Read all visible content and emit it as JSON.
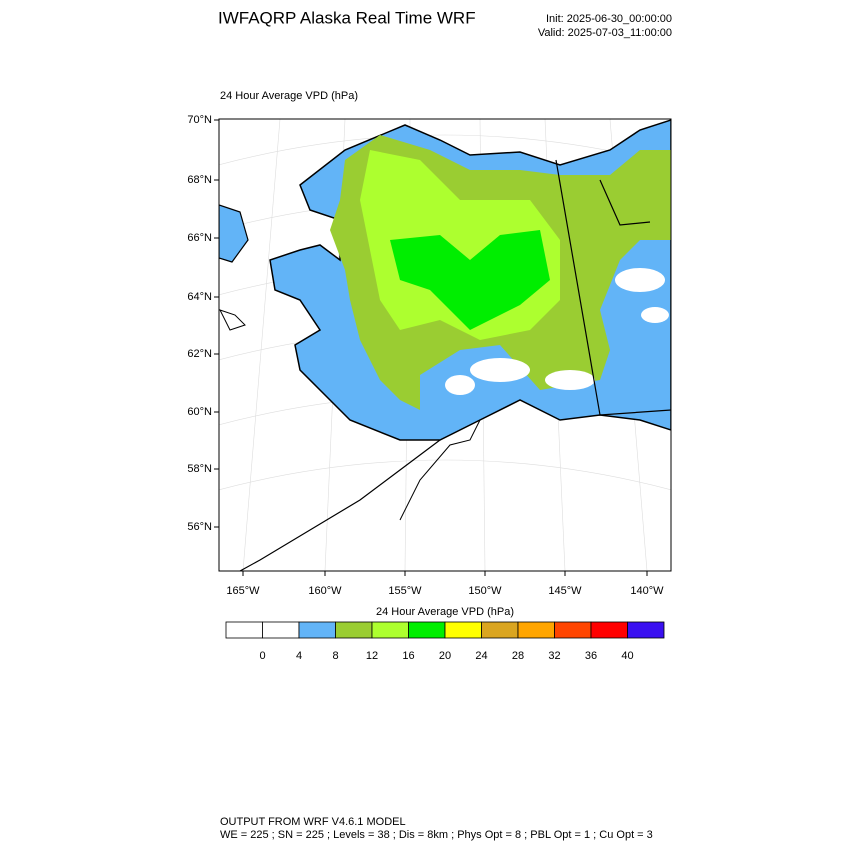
{
  "header": {
    "title": "IWFAQRP Alaska Real Time WRF",
    "init": "Init: 2025-06-30_00:00:00",
    "valid": "Valid: 2025-07-03_11:00:00"
  },
  "map": {
    "title": "24 Hour Average VPD   (hPa)",
    "lat_labels": [
      "70°N",
      "68°N",
      "66°N",
      "64°N",
      "62°N",
      "60°N",
      "58°N",
      "56°N"
    ],
    "lon_labels": [
      "165°W",
      "160°W",
      "155°W",
      "150°W",
      "145°W",
      "140°W"
    ]
  },
  "colorbar": {
    "title": "24 Hour Average VPD  (hPa)",
    "colors": [
      "#ffffff",
      "#ffffff",
      "#62b4f7",
      "#9acd32",
      "#adff2f",
      "#00ee00",
      "#ffff00",
      "#daa520",
      "#ffa500",
      "#ff4500",
      "#ff0000",
      "#3a10f0"
    ],
    "labels": [
      0,
      4,
      8,
      12,
      16,
      20,
      24,
      28,
      32,
      36,
      40
    ]
  },
  "footer": {
    "line1": "OUTPUT FROM WRF V4.6.1 MODEL",
    "line2": "WE = 225 ; SN = 225 ; Levels = 38 ; Dis = 8km ; Phys Opt = 8 ; PBL Opt = 1 ; Cu Opt = 3"
  }
}
